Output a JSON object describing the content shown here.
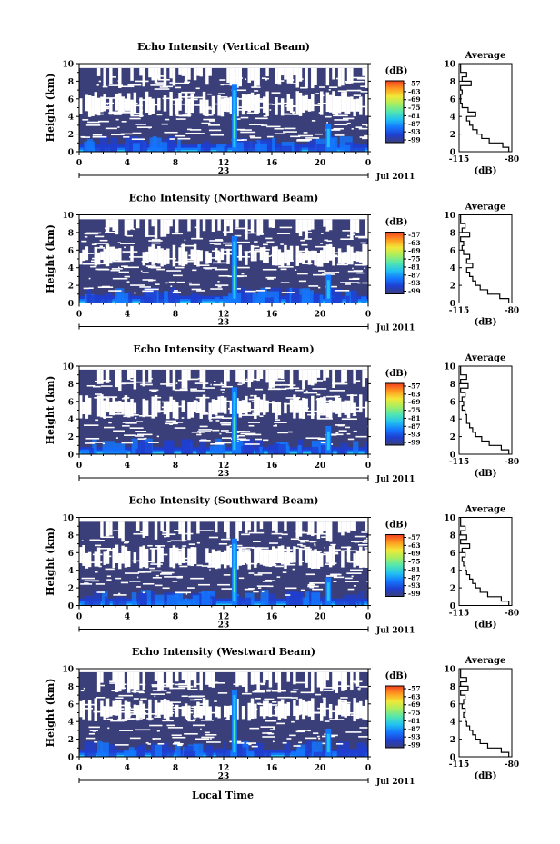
{
  "figure": {
    "xlabel": "Local Time",
    "cbar_unit": "(dB)",
    "date_label": "Jul 2011",
    "day_label": "23",
    "avg_title": "Average",
    "avg_xlabel": "(dB)",
    "colors": {
      "background": "#3b3f79",
      "noecho": "#ffffff",
      "colormap": [
        "#3b3f79",
        "#1f3fd0",
        "#1478ff",
        "#22c2f0",
        "#52e6b0",
        "#a8ee60",
        "#f2e838",
        "#ff9a20",
        "#f24020"
      ]
    }
  },
  "chart_data": [
    {
      "type": "heatmap",
      "title": "Echo Intensity (Vertical Beam)",
      "xlabel": "",
      "ylabel": "Height (km)",
      "xlim": [
        0,
        24
      ],
      "ylim": [
        0,
        10
      ],
      "x_ticks": [
        "0",
        "4",
        "8",
        "12",
        "16",
        "20",
        "0"
      ],
      "y_ticks": [
        "0",
        "2",
        "4",
        "6",
        "8",
        "10"
      ],
      "colorbar": {
        "unit": "(dB)",
        "ticks": [
          "-57",
          "-63",
          "-69",
          "-75",
          "-81",
          "-87",
          "-93",
          "-99"
        ]
      },
      "features": {
        "plume_hours": [
          12.9,
          20.7
        ],
        "clear_band_km": [
          4.3,
          6.2
        ],
        "echo_top_km": 9.5
      },
      "average_profile": {
        "title": "Average",
        "xlabel": "(dB)",
        "xlim": [
          -115,
          -80
        ],
        "x_ticks": [
          "-115",
          "-80"
        ],
        "y_ticks": [
          "0",
          "2",
          "4",
          "6",
          "8",
          "10"
        ],
        "height_km": [
          0,
          0.5,
          1,
          1.5,
          2,
          2.5,
          3,
          3.5,
          4,
          4.5,
          5,
          5.5,
          6,
          6.5,
          7,
          7.5,
          8,
          8.5,
          9,
          9.5,
          10
        ],
        "db": [
          -82,
          -86,
          -95,
          -100,
          -103,
          -106,
          -108,
          -110,
          -104,
          -109,
          -113,
          -114,
          -114,
          -113,
          -114,
          -107,
          -113,
          -110,
          -114,
          -114,
          -114
        ]
      }
    },
    {
      "type": "heatmap",
      "title": "Echo Intensity (Northward Beam)",
      "xlabel": "",
      "ylabel": "Height (km)",
      "xlim": [
        0,
        24
      ],
      "ylim": [
        0,
        10
      ],
      "x_ticks": [
        "0",
        "4",
        "8",
        "12",
        "16",
        "20",
        "0"
      ],
      "y_ticks": [
        "0",
        "2",
        "4",
        "6",
        "8",
        "10"
      ],
      "colorbar": {
        "unit": "(dB)",
        "ticks": [
          "-57",
          "-63",
          "-69",
          "-75",
          "-81",
          "-87",
          "-93",
          "-99"
        ]
      },
      "features": {
        "plume_hours": [
          12.9,
          20.7
        ],
        "clear_band_km": [
          4.5,
          6.0
        ],
        "echo_top_km": 9.5
      },
      "average_profile": {
        "title": "Average",
        "xlabel": "(dB)",
        "xlim": [
          -115,
          -80
        ],
        "x_ticks": [
          "-115",
          "-80"
        ],
        "y_ticks": [
          "0",
          "2",
          "4",
          "6",
          "8",
          "10"
        ],
        "height_km": [
          0,
          0.5,
          1,
          1.5,
          2,
          2.5,
          3,
          3.5,
          4,
          4.5,
          5,
          5.5,
          6,
          6.5,
          7,
          7.5,
          8,
          8.5,
          9,
          9.5,
          10
        ],
        "db": [
          -82,
          -88,
          -96,
          -101,
          -104,
          -106,
          -108,
          -110,
          -106,
          -110,
          -108,
          -112,
          -113,
          -112,
          -114,
          -108,
          -113,
          -111,
          -114,
          -114,
          -114
        ]
      }
    },
    {
      "type": "heatmap",
      "title": "Echo Intensity (Eastward Beam)",
      "xlabel": "",
      "ylabel": "Height (km)",
      "xlim": [
        0,
        24
      ],
      "ylim": [
        0,
        10
      ],
      "x_ticks": [
        "0",
        "4",
        "8",
        "12",
        "16",
        "20",
        "0"
      ],
      "y_ticks": [
        "0",
        "2",
        "4",
        "6",
        "8",
        "10"
      ],
      "colorbar": {
        "unit": "(dB)",
        "ticks": [
          "-57",
          "-63",
          "-69",
          "-75",
          "-81",
          "-87",
          "-93",
          "-99"
        ]
      },
      "features": {
        "plume_hours": [
          12.9,
          20.7
        ],
        "clear_band_km": [
          4.4,
          6.1
        ],
        "echo_top_km": 9.6
      },
      "average_profile": {
        "title": "Average",
        "xlabel": "(dB)",
        "xlim": [
          -115,
          -80
        ],
        "x_ticks": [
          "-115",
          "-80"
        ],
        "y_ticks": [
          "0",
          "2",
          "4",
          "6",
          "8",
          "10"
        ],
        "height_km": [
          0,
          0.5,
          1,
          1.5,
          2,
          2.5,
          3,
          3.5,
          4,
          4.5,
          5,
          5.5,
          6,
          6.5,
          7,
          7.5,
          8,
          8.5,
          9,
          9.5,
          10
        ],
        "db": [
          -82,
          -87,
          -95,
          -100,
          -104,
          -106,
          -108,
          -110,
          -110,
          -111,
          -113,
          -112,
          -113,
          -111,
          -114,
          -109,
          -114,
          -110,
          -114,
          -114,
          -114
        ]
      }
    },
    {
      "type": "heatmap",
      "title": "Echo Intensity (Southward Beam)",
      "xlabel": "",
      "ylabel": "Height (km)",
      "xlim": [
        0,
        24
      ],
      "ylim": [
        0,
        10
      ],
      "x_ticks": [
        "0",
        "4",
        "8",
        "12",
        "16",
        "20",
        "0"
      ],
      "y_ticks": [
        "0",
        "2",
        "4",
        "6",
        "8",
        "10"
      ],
      "colorbar": {
        "unit": "(dB)",
        "ticks": [
          "-57",
          "-63",
          "-69",
          "-75",
          "-81",
          "-87",
          "-93",
          "-99"
        ]
      },
      "features": {
        "plume_hours": [
          12.9,
          20.7
        ],
        "clear_band_km": [
          4.5,
          6.2
        ],
        "echo_top_km": 9.5
      },
      "average_profile": {
        "title": "Average",
        "xlabel": "(dB)",
        "xlim": [
          -115,
          -80
        ],
        "x_ticks": [
          "-115",
          "-80"
        ],
        "y_ticks": [
          "0",
          "2",
          "4",
          "6",
          "8",
          "10"
        ],
        "height_km": [
          0,
          0.5,
          1,
          1.5,
          2,
          2.5,
          3,
          3.5,
          4,
          4.5,
          5,
          5.5,
          6,
          6.5,
          7,
          7.5,
          8,
          8.5,
          9,
          9.5,
          10
        ],
        "db": [
          -82,
          -87,
          -96,
          -101,
          -104,
          -106,
          -108,
          -110,
          -111,
          -112,
          -113,
          -111,
          -113,
          -108,
          -114,
          -110,
          -114,
          -111,
          -114,
          -114,
          -114
        ]
      }
    },
    {
      "type": "heatmap",
      "title": "Echo Intensity (Westward Beam)",
      "xlabel": "Local Time",
      "ylabel": "Height (km)",
      "xlim": [
        0,
        24
      ],
      "ylim": [
        0,
        10
      ],
      "x_ticks": [
        "0",
        "4",
        "8",
        "12",
        "16",
        "20",
        "0"
      ],
      "y_ticks": [
        "0",
        "2",
        "4",
        "6",
        "8",
        "10"
      ],
      "colorbar": {
        "unit": "(dB)",
        "ticks": [
          "-57",
          "-63",
          "-69",
          "-75",
          "-81",
          "-87",
          "-93",
          "-99"
        ]
      },
      "features": {
        "plume_hours": [
          12.9,
          20.7
        ],
        "clear_band_km": [
          4.4,
          6.0
        ],
        "echo_top_km": 9.6
      },
      "average_profile": {
        "title": "Average",
        "xlabel": "(dB)",
        "xlim": [
          -115,
          -80
        ],
        "x_ticks": [
          "-115",
          "-80"
        ],
        "y_ticks": [
          "0",
          "2",
          "4",
          "6",
          "8",
          "10"
        ],
        "height_km": [
          0,
          0.5,
          1,
          1.5,
          2,
          2.5,
          3,
          3.5,
          4,
          4.5,
          5,
          5.5,
          6,
          6.5,
          7,
          7.5,
          8,
          8.5,
          9,
          9.5,
          10
        ],
        "db": [
          -82,
          -87,
          -96,
          -101,
          -104,
          -106,
          -108,
          -110,
          -111,
          -112,
          -111,
          -113,
          -112,
          -111,
          -114,
          -109,
          -114,
          -110,
          -114,
          -114,
          -114
        ]
      }
    }
  ]
}
